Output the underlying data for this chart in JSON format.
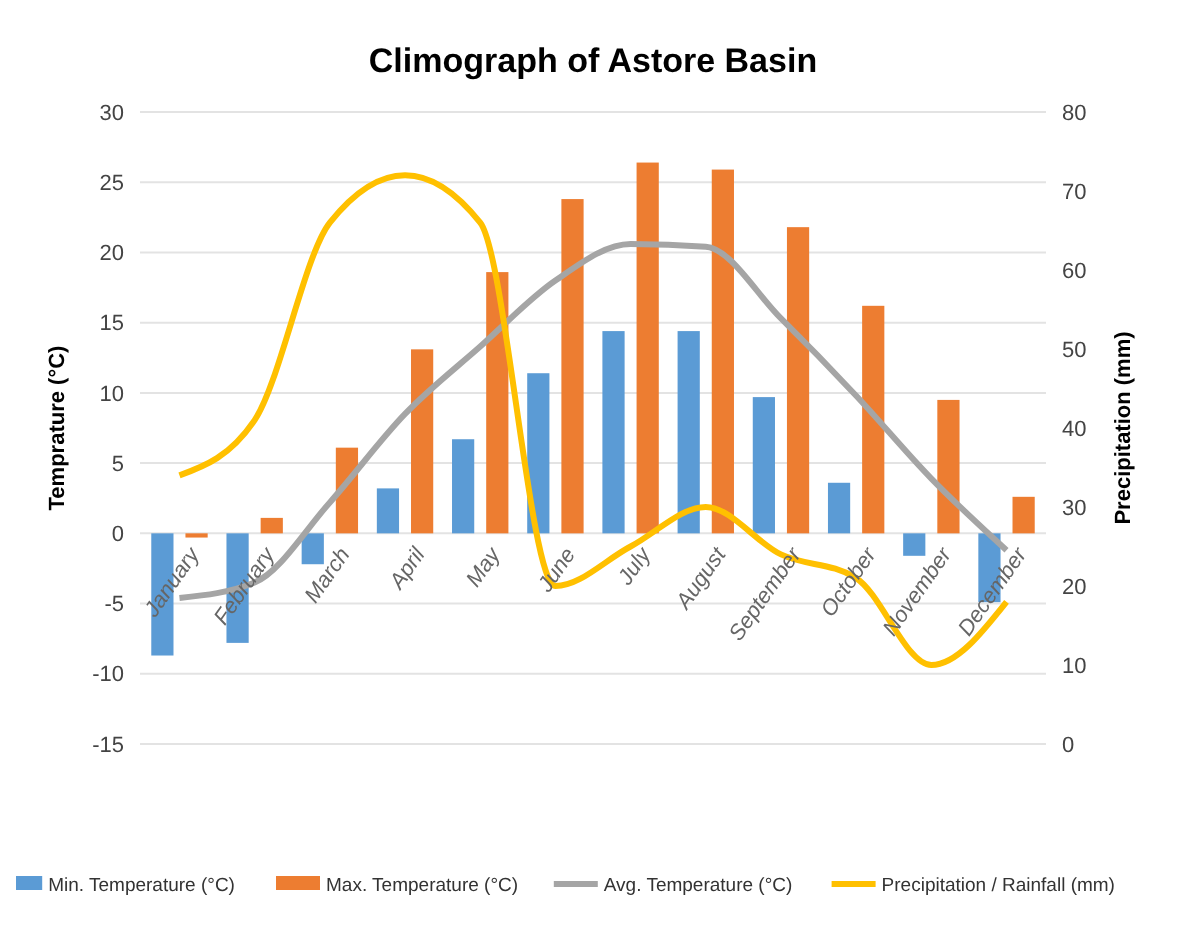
{
  "chart_data": {
    "type": "bar",
    "title": "Climograph of Astore Basin",
    "ylabel": "Temprature (°C)",
    "y2label": "Precipitation  (mm)",
    "categories": [
      "January",
      "February",
      "March",
      "April",
      "May",
      "June",
      "July",
      "August",
      "September",
      "October",
      "November",
      "December"
    ],
    "series": [
      {
        "name": "Min. Temperature (°C)",
        "color": "#5b9bd5",
        "values": [
          -8.7,
          -7.8,
          -2.2,
          3.2,
          6.7,
          11.4,
          14.4,
          14.4,
          9.7,
          3.6,
          -1.6,
          -4.9
        ]
      },
      {
        "name": "Max. Temperature (°C)",
        "color": "#ed7d31",
        "values": [
          -0.3,
          1.1,
          6.1,
          13.1,
          18.6,
          23.8,
          26.4,
          25.9,
          21.8,
          16.2,
          9.5,
          2.6
        ]
      },
      {
        "name": "Avg. Temperature (°C)",
        "type": "line",
        "color": "#a5a5a5",
        "values": [
          -4.6,
          -3.5,
          2.2,
          8.5,
          13.3,
          18,
          20.6,
          20.4,
          15.3,
          9.8,
          3.9,
          -1.2
        ]
      },
      {
        "name": "Precipitation / Rainfall (mm)",
        "type": "line",
        "axis": "y2",
        "color": "#ffc000",
        "values": [
          34,
          41,
          66,
          72,
          66,
          20,
          25,
          30,
          24,
          21,
          10,
          18
        ]
      }
    ],
    "ylim": [
      -15,
      30
    ],
    "yticks": [
      -15,
      -10,
      -5,
      0,
      5,
      10,
      15,
      20,
      25,
      30
    ],
    "y2lim": [
      0,
      80
    ],
    "y2ticks": [
      0,
      10,
      20,
      30,
      40,
      50,
      60,
      70,
      80
    ],
    "grid": "y",
    "legend": "bottom",
    "marker": "none",
    "line_style": "solid"
  }
}
